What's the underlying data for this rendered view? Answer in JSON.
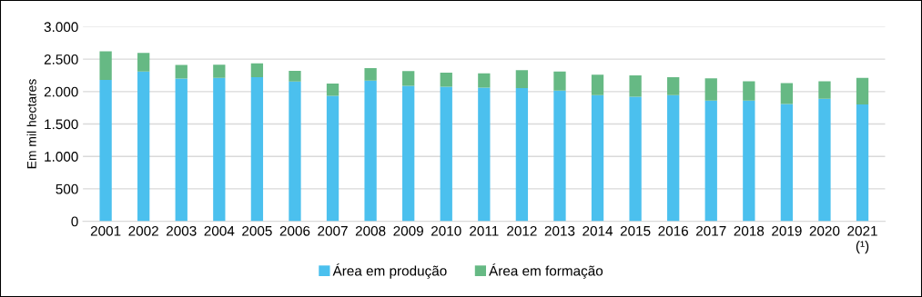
{
  "chart_data": {
    "type": "bar",
    "stacked": true,
    "ylabel": "Em mil hectares",
    "categories": [
      "2001",
      "2002",
      "2003",
      "2004",
      "2005",
      "2006",
      "2007",
      "2008",
      "2009",
      "2010",
      "2011",
      "2012",
      "2013",
      "2014",
      "2015",
      "2016",
      "2017",
      "2018",
      "2019",
      "2020",
      "2021\n(¹)"
    ],
    "series": [
      {
        "name": "Área em produção",
        "color": "#4bc0ee",
        "values": [
          2180,
          2310,
          2200,
          2210,
          2220,
          2155,
          1935,
          2170,
          2090,
          2075,
          2060,
          2055,
          2015,
          1945,
          1920,
          1945,
          1860,
          1860,
          1810,
          1890,
          1800
        ]
      },
      {
        "name": "Área em formação",
        "color": "#66b984",
        "values": [
          440,
          285,
          210,
          205,
          215,
          165,
          190,
          190,
          225,
          215,
          220,
          275,
          295,
          315,
          330,
          275,
          345,
          300,
          320,
          270,
          410
        ]
      }
    ],
    "ylim": [
      0,
      3000
    ],
    "yticks": [
      0,
      500,
      {
        "value": 1000,
        "label": "1.000"
      },
      {
        "value": 1500,
        "label": "1.500"
      },
      {
        "value": 2000,
        "label": "2.000"
      },
      {
        "value": 2500,
        "label": "2.500"
      },
      {
        "value": 3000,
        "label": "3.000"
      }
    ],
    "grid": "y",
    "legend": "bottom"
  }
}
